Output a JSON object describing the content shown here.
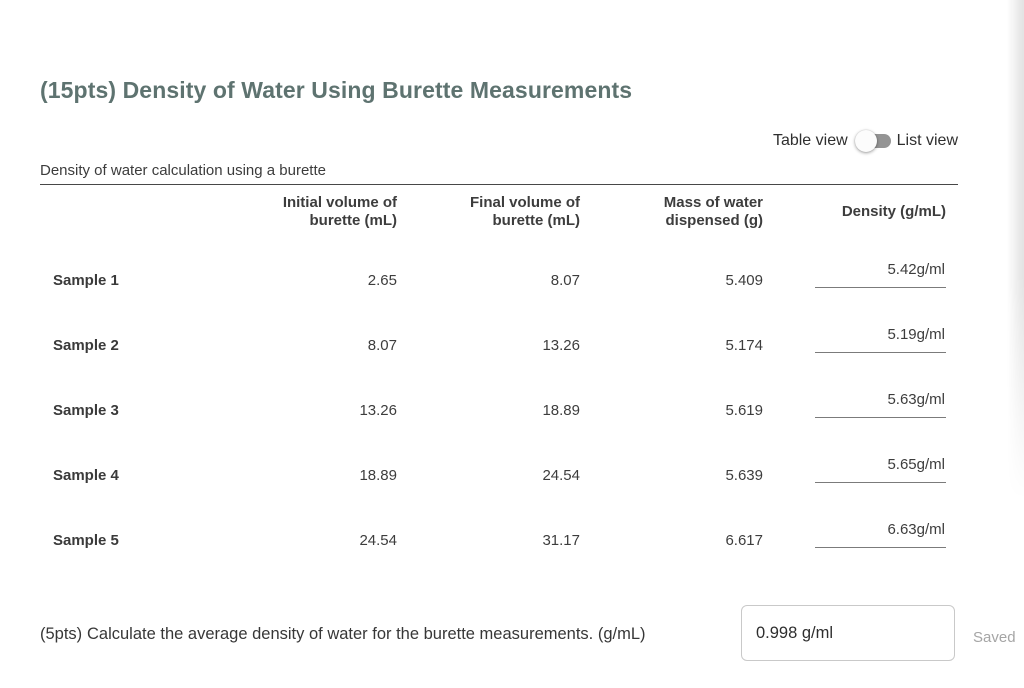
{
  "header": {
    "title": "(15pts) Density of Water Using Burette Measurements"
  },
  "view_toggle": {
    "table_label": "Table view",
    "list_label": "List view",
    "state": "table"
  },
  "table": {
    "caption": "Density of water calculation using a burette",
    "headers": {
      "initial": "Initial volume of burette (mL)",
      "final": "Final volume of burette (mL)",
      "mass": "Mass of water dispensed (g)",
      "density": "Density (g/mL)"
    },
    "rows": [
      {
        "label": "Sample 1",
        "initial": "2.65",
        "final": "8.07",
        "mass": "5.409",
        "density": "5.42g/ml"
      },
      {
        "label": "Sample 2",
        "initial": "8.07",
        "final": "13.26",
        "mass": "5.174",
        "density": "5.19g/ml"
      },
      {
        "label": "Sample 3",
        "initial": "13.26",
        "final": "18.89",
        "mass": "5.619",
        "density": "5.63g/ml"
      },
      {
        "label": "Sample 4",
        "initial": "18.89",
        "final": "24.54",
        "mass": "5.639",
        "density": "5.65g/ml"
      },
      {
        "label": "Sample 5",
        "initial": "24.54",
        "final": "31.17",
        "mass": "6.617",
        "density": "6.63g/ml"
      }
    ]
  },
  "question": {
    "points": "(5pts)",
    "text": "Calculate the average density of water for the burette measurements. (g/mL)",
    "answer": "0.998 g/ml",
    "status": "Saved"
  },
  "colors": {
    "title": "#5e7370",
    "rule": "#474747",
    "toggle_track": "#949494",
    "saved": "#a5a5a5"
  }
}
